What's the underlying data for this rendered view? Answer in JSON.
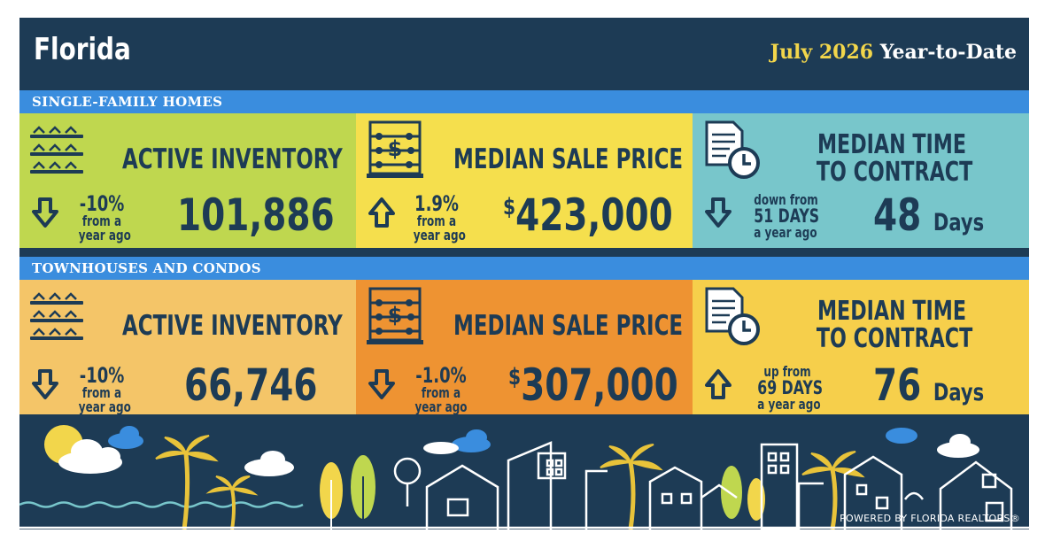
{
  "header": {
    "title": "Florida",
    "period_month": "July 2026",
    "period_label": "Year-to-Date"
  },
  "colors": {
    "background": "#1d3b55",
    "band": "#3a8dde",
    "green": "#bfd74f",
    "yellow": "#f5df4d",
    "teal": "#78c6cb",
    "light_orange": "#f4c568",
    "orange": "#ee9332",
    "gold": "#f6cf4b",
    "text": "#1d3b55",
    "accent_gold": "#f2d64b"
  },
  "sections": [
    {
      "label": "SINGLE-FAMILY HOMES",
      "tiles": [
        {
          "icon": "houses-icon",
          "heading": "ACTIVE INVENTORY",
          "arrow": "down",
          "change_line1": "-10%",
          "change_line2": "from a",
          "change_line3": "year ago",
          "value": "101,886"
        },
        {
          "icon": "abacus-icon",
          "heading": "MEDIAN SALE PRICE",
          "arrow": "up",
          "change_line1": "1.9%",
          "change_line2": "from a",
          "change_line3": "year ago",
          "value_symbol": "$",
          "value": "423,000"
        },
        {
          "icon": "document-clock-icon",
          "heading_line1": "MEDIAN TIME",
          "heading_line2": "TO CONTRACT",
          "arrow": "down",
          "change_line1": "down from",
          "change_line2": "51 DAYS",
          "change_line3": "a year ago",
          "value": "48",
          "unit": "Days"
        }
      ]
    },
    {
      "label": "TOWNHOUSES AND CONDOS",
      "tiles": [
        {
          "icon": "houses-icon",
          "heading": "ACTIVE INVENTORY",
          "arrow": "down",
          "change_line1": "-10%",
          "change_line2": "from a",
          "change_line3": "year ago",
          "value": "66,746"
        },
        {
          "icon": "abacus-icon",
          "heading": "MEDIAN SALE PRICE",
          "arrow": "down",
          "change_line1": "-1.0%",
          "change_line2": "from a",
          "change_line3": "year ago",
          "value_symbol": "$",
          "value": "307,000"
        },
        {
          "icon": "document-clock-icon",
          "heading_line1": "MEDIAN TIME",
          "heading_line2": "TO CONTRACT",
          "arrow": "up",
          "change_line1": "up from",
          "change_line2": "69 DAYS",
          "change_line3": "a year ago",
          "value": "76",
          "unit": "Days"
        }
      ]
    }
  ],
  "footer": {
    "powered_by": "POWERED BY FLORIDA REALTORS®"
  }
}
